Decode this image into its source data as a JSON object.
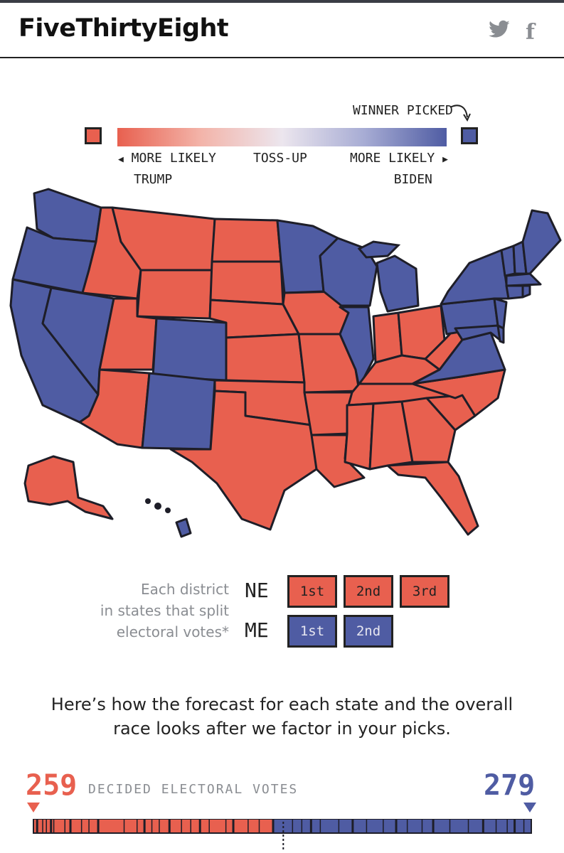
{
  "header": {
    "logo": "FiveThirtyEight",
    "twitter_icon": "twitter-icon",
    "facebook_icon": "facebook-icon",
    "facebook_glyph": "f",
    "twitter_glyph": "🐦"
  },
  "legend": {
    "winner_picked": "WINNER PICKED",
    "left_label_1": "MORE LIKELY",
    "left_label_2": "TRUMP",
    "middle_label": "TOSS-UP",
    "right_label_1": "MORE LIKELY",
    "right_label_2": "BIDEN",
    "trump_color": "#e8604f",
    "biden_color": "#4f5ca3"
  },
  "districts": {
    "note_line1": "Each district",
    "note_line2": "in states that split",
    "note_line3": "electoral votes*",
    "ne": {
      "label": "NE",
      "buttons": [
        "1st",
        "2nd",
        "3rd"
      ]
    },
    "me": {
      "label": "ME",
      "buttons": [
        "1st",
        "2nd"
      ]
    }
  },
  "caption": {
    "line1": "Here’s how the forecast for each state and the overall",
    "line2": "race looks after we factor in your picks."
  },
  "electoral": {
    "trump_votes": "259",
    "biden_votes": "279",
    "label": "DECIDED ELECTORAL VOTES",
    "total": 538,
    "threshold": 270
  }
}
